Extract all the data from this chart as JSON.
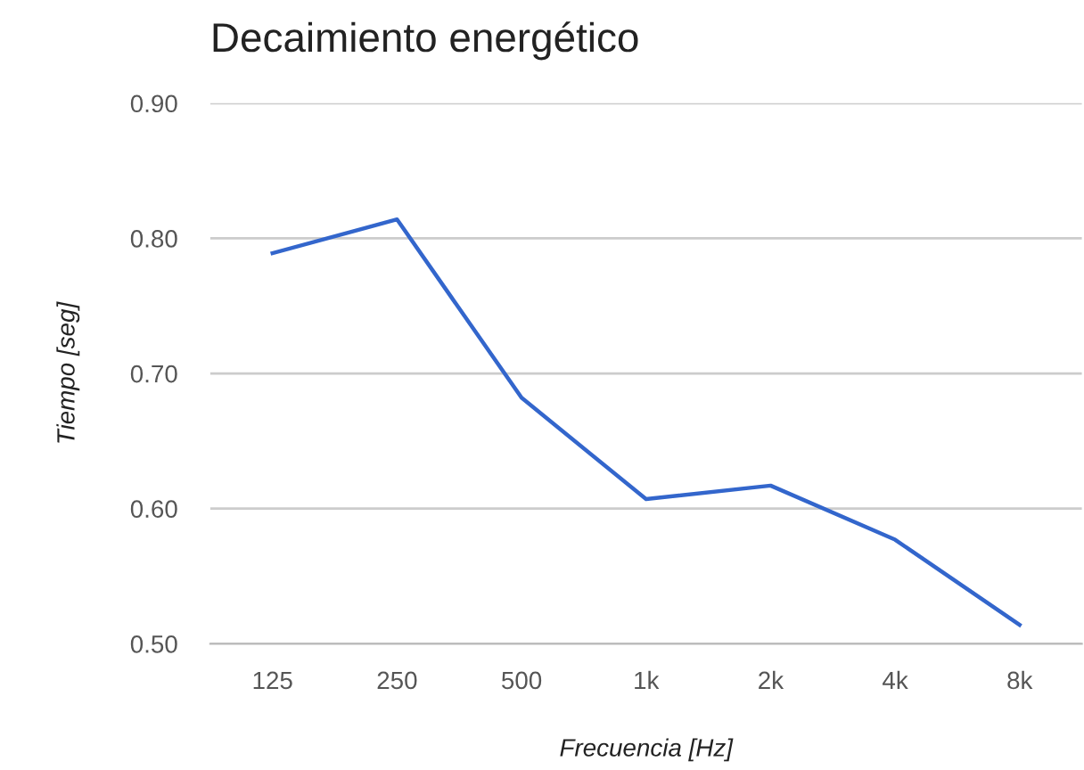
{
  "chart_data": {
    "type": "line",
    "title": "Decaimiento energético",
    "xlabel": "Frecuencia [Hz]",
    "ylabel": "Tiempo [seg]",
    "categories": [
      "125",
      "250",
      "500",
      "1k",
      "2k",
      "4k",
      "8k"
    ],
    "series": [
      {
        "color": "#3366cc",
        "values": [
          0.789,
          0.814,
          0.682,
          0.607,
          0.617,
          0.577,
          0.514
        ]
      }
    ],
    "ylim": [
      0.5,
      0.9
    ],
    "yticks": [
      {
        "value": 0.5,
        "label": "0.50"
      },
      {
        "value": 0.6,
        "label": "0.60"
      },
      {
        "value": 0.7,
        "label": "0.70"
      },
      {
        "value": 0.8,
        "label": "0.80"
      },
      {
        "value": 0.9,
        "label": "0.90"
      }
    ],
    "grid": "y",
    "marker": "none",
    "line_style": "solid"
  }
}
